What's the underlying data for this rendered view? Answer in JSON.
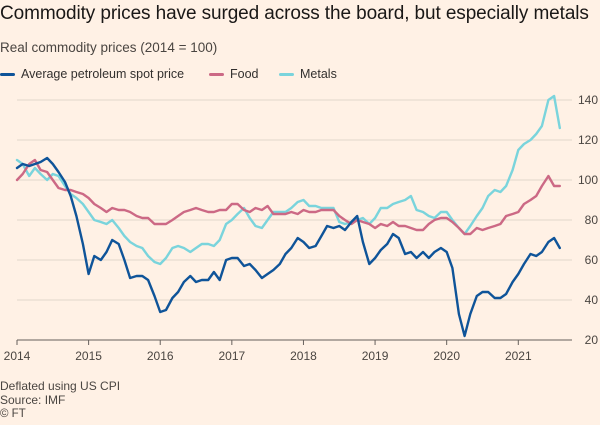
{
  "chart_data": {
    "type": "line",
    "title": "Commodity prices have surged across the board, but especially metals",
    "subtitle": "Real commodity prices (2014 = 100)",
    "xlabel": "",
    "ylabel": "",
    "xlim": [
      2014.0,
      2021.75
    ],
    "ylim": [
      20,
      145
    ],
    "yticks": [
      20,
      40,
      60,
      80,
      100,
      120,
      140
    ],
    "xtick_labels": [
      "2014",
      "2015",
      "2016",
      "2017",
      "2018",
      "2019",
      "2020",
      "2021"
    ],
    "xticks": [
      2014,
      2015,
      2016,
      2017,
      2018,
      2019,
      2020,
      2021
    ],
    "grid": true,
    "legend_position": "top-left",
    "series": [
      {
        "name": "Average petroleum spot price",
        "color": "#0f5499",
        "points": [
          [
            2014.0,
            106
          ],
          [
            2014.08,
            108
          ],
          [
            2014.17,
            107
          ],
          [
            2014.25,
            108
          ],
          [
            2014.33,
            109
          ],
          [
            2014.42,
            111
          ],
          [
            2014.5,
            108
          ],
          [
            2014.58,
            104
          ],
          [
            2014.67,
            99
          ],
          [
            2014.75,
            92
          ],
          [
            2014.83,
            82
          ],
          [
            2014.92,
            68
          ],
          [
            2015.0,
            53
          ],
          [
            2015.08,
            62
          ],
          [
            2015.17,
            60
          ],
          [
            2015.25,
            64
          ],
          [
            2015.33,
            70
          ],
          [
            2015.42,
            68
          ],
          [
            2015.5,
            60
          ],
          [
            2015.58,
            51
          ],
          [
            2015.67,
            52
          ],
          [
            2015.75,
            52
          ],
          [
            2015.83,
            50
          ],
          [
            2015.92,
            42
          ],
          [
            2016.0,
            34
          ],
          [
            2016.08,
            35
          ],
          [
            2016.17,
            41
          ],
          [
            2016.25,
            44
          ],
          [
            2016.33,
            49
          ],
          [
            2016.42,
            52
          ],
          [
            2016.5,
            49
          ],
          [
            2016.58,
            50
          ],
          [
            2016.67,
            50
          ],
          [
            2016.75,
            54
          ],
          [
            2016.83,
            50
          ],
          [
            2016.92,
            60
          ],
          [
            2017.0,
            61
          ],
          [
            2017.08,
            61
          ],
          [
            2017.17,
            57
          ],
          [
            2017.25,
            58
          ],
          [
            2017.33,
            55
          ],
          [
            2017.42,
            51
          ],
          [
            2017.5,
            53
          ],
          [
            2017.58,
            55
          ],
          [
            2017.67,
            58
          ],
          [
            2017.75,
            63
          ],
          [
            2017.83,
            66
          ],
          [
            2017.92,
            71
          ],
          [
            2018.0,
            69
          ],
          [
            2018.08,
            66
          ],
          [
            2018.17,
            67
          ],
          [
            2018.25,
            72
          ],
          [
            2018.33,
            77
          ],
          [
            2018.42,
            76
          ],
          [
            2018.5,
            77
          ],
          [
            2018.58,
            75
          ],
          [
            2018.67,
            79
          ],
          [
            2018.75,
            82
          ],
          [
            2018.83,
            69
          ],
          [
            2018.92,
            58
          ],
          [
            2019.0,
            61
          ],
          [
            2019.08,
            65
          ],
          [
            2019.17,
            68
          ],
          [
            2019.25,
            73
          ],
          [
            2019.33,
            71
          ],
          [
            2019.42,
            63
          ],
          [
            2019.5,
            64
          ],
          [
            2019.58,
            61
          ],
          [
            2019.67,
            64
          ],
          [
            2019.75,
            61
          ],
          [
            2019.83,
            64
          ],
          [
            2019.92,
            66
          ],
          [
            2020.0,
            64
          ],
          [
            2020.08,
            56
          ],
          [
            2020.17,
            33
          ],
          [
            2020.25,
            22
          ],
          [
            2020.33,
            33
          ],
          [
            2020.42,
            42
          ],
          [
            2020.5,
            44
          ],
          [
            2020.58,
            44
          ],
          [
            2020.67,
            41
          ],
          [
            2020.75,
            41
          ],
          [
            2020.83,
            43
          ],
          [
            2020.92,
            49
          ],
          [
            2021.0,
            53
          ],
          [
            2021.08,
            58
          ],
          [
            2021.17,
            63
          ],
          [
            2021.25,
            62
          ],
          [
            2021.33,
            64
          ],
          [
            2021.42,
            69
          ],
          [
            2021.5,
            71
          ],
          [
            2021.58,
            66
          ]
        ]
      },
      {
        "name": "Food",
        "color": "#cc6985",
        "points": [
          [
            2014.0,
            100
          ],
          [
            2014.08,
            103
          ],
          [
            2014.17,
            108
          ],
          [
            2014.25,
            110
          ],
          [
            2014.33,
            105
          ],
          [
            2014.42,
            104
          ],
          [
            2014.5,
            100
          ],
          [
            2014.58,
            96
          ],
          [
            2014.67,
            95
          ],
          [
            2014.75,
            95
          ],
          [
            2014.83,
            94
          ],
          [
            2014.92,
            93
          ],
          [
            2015.0,
            91
          ],
          [
            2015.08,
            88
          ],
          [
            2015.17,
            86
          ],
          [
            2015.25,
            84
          ],
          [
            2015.33,
            86
          ],
          [
            2015.42,
            85
          ],
          [
            2015.5,
            85
          ],
          [
            2015.58,
            84
          ],
          [
            2015.67,
            82
          ],
          [
            2015.75,
            81
          ],
          [
            2015.83,
            81
          ],
          [
            2015.92,
            78
          ],
          [
            2016.0,
            78
          ],
          [
            2016.08,
            78
          ],
          [
            2016.17,
            80
          ],
          [
            2016.25,
            82
          ],
          [
            2016.33,
            84
          ],
          [
            2016.42,
            85
          ],
          [
            2016.5,
            86
          ],
          [
            2016.58,
            85
          ],
          [
            2016.67,
            84
          ],
          [
            2016.75,
            84
          ],
          [
            2016.83,
            85
          ],
          [
            2016.92,
            85
          ],
          [
            2017.0,
            88
          ],
          [
            2017.08,
            88
          ],
          [
            2017.17,
            85
          ],
          [
            2017.25,
            84
          ],
          [
            2017.33,
            86
          ],
          [
            2017.42,
            85
          ],
          [
            2017.5,
            87
          ],
          [
            2017.58,
            83
          ],
          [
            2017.67,
            83
          ],
          [
            2017.75,
            83
          ],
          [
            2017.83,
            84
          ],
          [
            2017.92,
            83
          ],
          [
            2018.0,
            85
          ],
          [
            2018.08,
            84
          ],
          [
            2018.17,
            84
          ],
          [
            2018.25,
            85
          ],
          [
            2018.33,
            85
          ],
          [
            2018.42,
            85
          ],
          [
            2018.5,
            82
          ],
          [
            2018.58,
            80
          ],
          [
            2018.67,
            78
          ],
          [
            2018.75,
            80
          ],
          [
            2018.83,
            79
          ],
          [
            2018.92,
            78
          ],
          [
            2019.0,
            76
          ],
          [
            2019.08,
            78
          ],
          [
            2019.17,
            77
          ],
          [
            2019.25,
            79
          ],
          [
            2019.33,
            77
          ],
          [
            2019.42,
            77
          ],
          [
            2019.5,
            76
          ],
          [
            2019.58,
            75
          ],
          [
            2019.67,
            75
          ],
          [
            2019.75,
            78
          ],
          [
            2019.83,
            80
          ],
          [
            2019.92,
            81
          ],
          [
            2020.0,
            81
          ],
          [
            2020.08,
            79
          ],
          [
            2020.17,
            76
          ],
          [
            2020.25,
            73
          ],
          [
            2020.33,
            73
          ],
          [
            2020.42,
            76
          ],
          [
            2020.5,
            75
          ],
          [
            2020.58,
            76
          ],
          [
            2020.67,
            77
          ],
          [
            2020.75,
            78
          ],
          [
            2020.83,
            82
          ],
          [
            2020.92,
            83
          ],
          [
            2021.0,
            84
          ],
          [
            2021.08,
            88
          ],
          [
            2021.17,
            90
          ],
          [
            2021.25,
            92
          ],
          [
            2021.33,
            97
          ],
          [
            2021.42,
            102
          ],
          [
            2021.5,
            97
          ],
          [
            2021.58,
            97
          ]
        ]
      },
      {
        "name": "Metals",
        "color": "#7ad4dc",
        "points": [
          [
            2014.0,
            110
          ],
          [
            2014.08,
            108
          ],
          [
            2014.17,
            102
          ],
          [
            2014.25,
            106
          ],
          [
            2014.33,
            103
          ],
          [
            2014.42,
            100
          ],
          [
            2014.5,
            103
          ],
          [
            2014.58,
            102
          ],
          [
            2014.67,
            97
          ],
          [
            2014.75,
            93
          ],
          [
            2014.83,
            91
          ],
          [
            2014.92,
            88
          ],
          [
            2015.0,
            84
          ],
          [
            2015.08,
            80
          ],
          [
            2015.17,
            79
          ],
          [
            2015.25,
            78
          ],
          [
            2015.33,
            80
          ],
          [
            2015.42,
            76
          ],
          [
            2015.5,
            72
          ],
          [
            2015.58,
            69
          ],
          [
            2015.67,
            67
          ],
          [
            2015.75,
            66
          ],
          [
            2015.83,
            62
          ],
          [
            2015.92,
            59
          ],
          [
            2016.0,
            58
          ],
          [
            2016.08,
            61
          ],
          [
            2016.17,
            66
          ],
          [
            2016.25,
            67
          ],
          [
            2016.33,
            66
          ],
          [
            2016.42,
            64
          ],
          [
            2016.5,
            66
          ],
          [
            2016.58,
            68
          ],
          [
            2016.67,
            68
          ],
          [
            2016.75,
            67
          ],
          [
            2016.83,
            70
          ],
          [
            2016.92,
            78
          ],
          [
            2017.0,
            80
          ],
          [
            2017.08,
            83
          ],
          [
            2017.17,
            86
          ],
          [
            2017.25,
            81
          ],
          [
            2017.33,
            77
          ],
          [
            2017.42,
            76
          ],
          [
            2017.5,
            80
          ],
          [
            2017.58,
            84
          ],
          [
            2017.67,
            84
          ],
          [
            2017.75,
            84
          ],
          [
            2017.83,
            86
          ],
          [
            2017.92,
            89
          ],
          [
            2018.0,
            90
          ],
          [
            2018.08,
            87
          ],
          [
            2018.17,
            87
          ],
          [
            2018.25,
            86
          ],
          [
            2018.33,
            86
          ],
          [
            2018.42,
            86
          ],
          [
            2018.5,
            79
          ],
          [
            2018.58,
            78
          ],
          [
            2018.67,
            79
          ],
          [
            2018.75,
            80
          ],
          [
            2018.83,
            81
          ],
          [
            2018.92,
            78
          ],
          [
            2019.0,
            81
          ],
          [
            2019.08,
            86
          ],
          [
            2019.17,
            86
          ],
          [
            2019.25,
            88
          ],
          [
            2019.33,
            89
          ],
          [
            2019.42,
            90
          ],
          [
            2019.5,
            92
          ],
          [
            2019.58,
            85
          ],
          [
            2019.67,
            84
          ],
          [
            2019.75,
            82
          ],
          [
            2019.83,
            81
          ],
          [
            2019.92,
            84
          ],
          [
            2020.0,
            84
          ],
          [
            2020.08,
            80
          ],
          [
            2020.17,
            76
          ],
          [
            2020.25,
            73
          ],
          [
            2020.33,
            77
          ],
          [
            2020.42,
            82
          ],
          [
            2020.5,
            86
          ],
          [
            2020.58,
            92
          ],
          [
            2020.67,
            95
          ],
          [
            2020.75,
            94
          ],
          [
            2020.83,
            97
          ],
          [
            2020.92,
            105
          ],
          [
            2021.0,
            115
          ],
          [
            2021.08,
            118
          ],
          [
            2021.17,
            120
          ],
          [
            2021.25,
            123
          ],
          [
            2021.33,
            127
          ],
          [
            2021.42,
            140
          ],
          [
            2021.5,
            142
          ],
          [
            2021.58,
            126
          ]
        ]
      }
    ]
  },
  "footer": {
    "note": "Deflated using US CPI",
    "source": "Source: IMF",
    "credit": "© FT"
  }
}
